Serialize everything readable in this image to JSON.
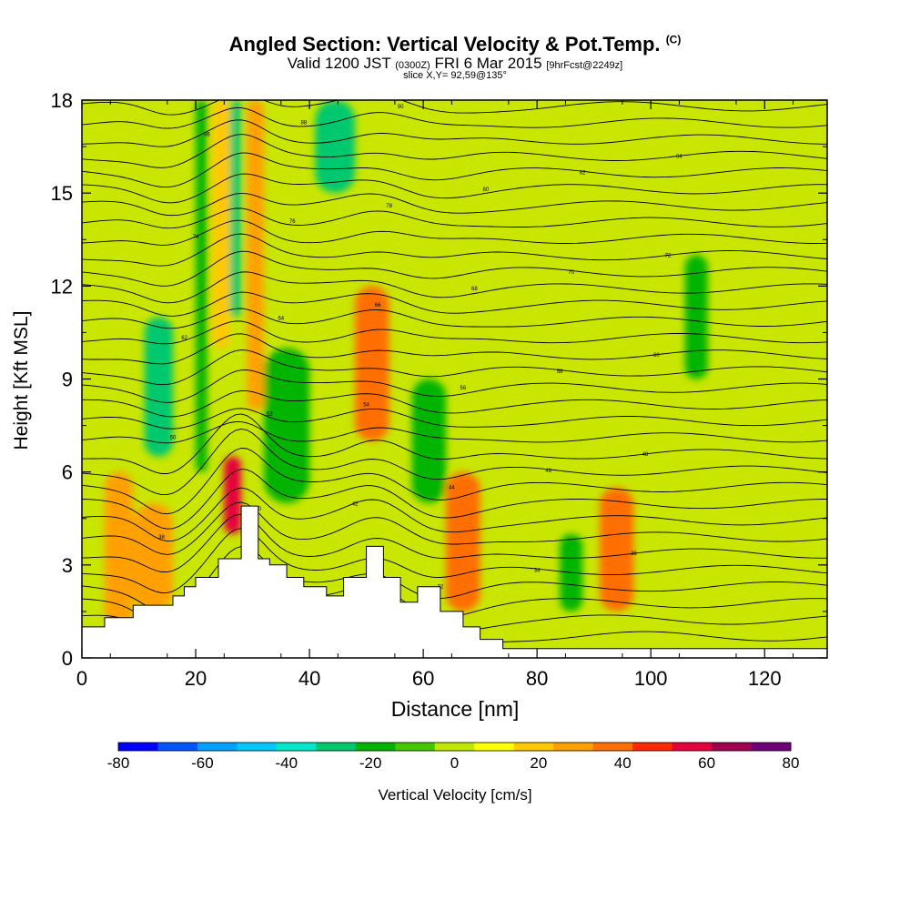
{
  "chart_data": {
    "type": "heatmap",
    "title": "Angled Section: Vertical Velocity & Pot.Temp.",
    "title_mark": "(C)",
    "subtitle_main": "Valid 1200 JST",
    "subtitle_utc": "(0300Z)",
    "subtitle_date": "FRI 6 Mar 2015",
    "subtitle_fcst": "[9hrFcst@2249z]",
    "slice_label": "slice X,Y= 92,59@135°",
    "xlabel": "Distance [nm]",
    "ylabel": "Height [Kft MSL]",
    "xlim": [
      0,
      131
    ],
    "ylim": [
      0,
      18
    ],
    "x_ticks": [
      "0",
      "20",
      "40",
      "60",
      "80",
      "100",
      "120"
    ],
    "y_ticks": [
      "0",
      "3",
      "6",
      "9",
      "12",
      "15",
      "18"
    ],
    "colorbar": {
      "label": "Vertical Velocity [cm/s]",
      "range": [
        -80,
        80
      ],
      "tick_labels": [
        "-80",
        "-60",
        "-40",
        "-20",
        "0",
        "20",
        "40",
        "60",
        "80"
      ],
      "colors": [
        "#0000ff",
        "#0055ff",
        "#00a0ff",
        "#00c8ff",
        "#00e8c8",
        "#00c86e",
        "#00b400",
        "#44c800",
        "#c0e800",
        "#ffff00",
        "#ffc800",
        "#ffa000",
        "#ff6e00",
        "#ff2800",
        "#e6003c",
        "#a00050",
        "#6e0078"
      ]
    },
    "velocity_bands": [
      {
        "x": [
          4,
          9
        ],
        "kft": [
          1,
          6
        ],
        "w": 25
      },
      {
        "x": [
          9,
          16
        ],
        "kft": [
          1.5,
          5
        ],
        "w": 25
      },
      {
        "x": [
          11,
          16
        ],
        "kft": [
          6.5,
          11
        ],
        "w": -25
      },
      {
        "x": [
          20,
          22
        ],
        "kft": [
          6,
          18
        ],
        "w": -20
      },
      {
        "x": [
          23,
          26
        ],
        "kft": [
          10,
          18
        ],
        "w": 20
      },
      {
        "x": [
          25,
          28
        ],
        "kft": [
          4,
          6.5
        ],
        "w": 55
      },
      {
        "x": [
          26,
          28
        ],
        "kft": [
          11,
          18
        ],
        "w": -25
      },
      {
        "x": [
          29,
          32
        ],
        "kft": [
          8,
          18
        ],
        "w": 25
      },
      {
        "x": [
          32,
          40
        ],
        "kft": [
          5,
          10
        ],
        "w": -20
      },
      {
        "x": [
          41,
          48
        ],
        "kft": [
          15,
          18
        ],
        "w": -25
      },
      {
        "x": [
          48,
          54
        ],
        "kft": [
          7,
          12
        ],
        "w": 35
      },
      {
        "x": [
          58,
          64
        ],
        "kft": [
          5,
          9
        ],
        "w": -20
      },
      {
        "x": [
          64,
          70
        ],
        "kft": [
          1.5,
          6
        ],
        "w": 35
      },
      {
        "x": [
          84,
          88
        ],
        "kft": [
          1.5,
          4
        ],
        "w": -20
      },
      {
        "x": [
          91,
          97
        ],
        "kft": [
          1.5,
          5.5
        ],
        "w": 40
      },
      {
        "x": [
          106,
          110
        ],
        "kft": [
          9,
          13
        ],
        "w": -20
      }
    ],
    "theta_contour_labels": [
      "26",
      "28",
      "30",
      "32",
      "34",
      "36",
      "38",
      "40",
      "42",
      "44",
      "46",
      "48",
      "50",
      "52",
      "54",
      "56",
      "58",
      "60",
      "62",
      "64",
      "66",
      "68",
      "70",
      "72",
      "74",
      "76",
      "78",
      "80",
      "82",
      "84",
      "86",
      "88",
      "90"
    ],
    "terrain": {
      "x": [
        0,
        4,
        4,
        9,
        9,
        16,
        16,
        18,
        18,
        20,
        20,
        24,
        24,
        28,
        28,
        31,
        31,
        33,
        33,
        36,
        36,
        39,
        39,
        43,
        43,
        46,
        46,
        50,
        50,
        53,
        53,
        56,
        56,
        59,
        59,
        63,
        63,
        67,
        67,
        70,
        70,
        74,
        74,
        131
      ],
      "kft": [
        1.0,
        1.0,
        1.3,
        1.3,
        1.7,
        1.7,
        2.0,
        2.0,
        2.3,
        2.3,
        2.6,
        2.6,
        3.2,
        3.2,
        4.9,
        4.9,
        3.2,
        3.2,
        3.0,
        3.0,
        2.6,
        2.6,
        2.3,
        2.3,
        2.0,
        2.0,
        2.6,
        2.6,
        3.6,
        3.6,
        2.6,
        2.6,
        1.8,
        1.8,
        2.3,
        2.3,
        1.5,
        1.5,
        1.0,
        1.0,
        0.6,
        0.6,
        0.3,
        0.3
      ]
    }
  }
}
